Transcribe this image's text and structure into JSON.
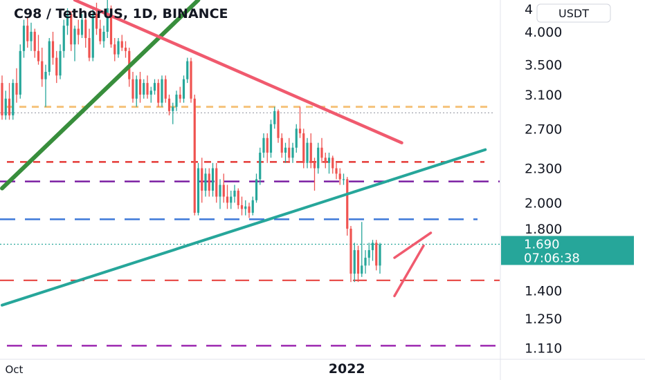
{
  "chart_data": {
    "type": "candlestick",
    "title": "C98 / TetherUS, 1D, BINANCE",
    "currency": "USDT",
    "y_scale": "log",
    "ylim": [
      1.06,
      4.55
    ],
    "y_ticks": [
      "4.000",
      "3.500",
      "3.100",
      "2.700",
      "2.300",
      "2.000",
      "1.800",
      "1.400",
      "1.250",
      "1.110"
    ],
    "y_tick_values": [
      4.0,
      3.5,
      3.1,
      2.7,
      2.3,
      2.0,
      1.8,
      1.4,
      1.25,
      1.11
    ],
    "top_partial_tick": "4",
    "x_labels": [
      {
        "text": "Oct",
        "bar": 2,
        "bold": false
      },
      {
        "text": "2022",
        "bar": 91,
        "bold": true
      }
    ],
    "colors": {
      "up": "#26a69a",
      "down": "#ef5350",
      "teal_line": "#26a69a",
      "green_line": "#388e3c",
      "red_line": "#f05a6e",
      "orange_dash": "#f5c27a",
      "red_dash": "#e53935",
      "purple_dash": "#7b1fa2",
      "blue_dash": "#3c78d8",
      "pink_purple_dash": "#9c27b0"
    },
    "current_price": {
      "value": 1.69,
      "price": "1.690",
      "countdown": "07:06:38"
    },
    "candles": [
      [
        3.25,
        3.35,
        2.8,
        2.85
      ],
      [
        2.85,
        3.15,
        2.8,
        3.05
      ],
      [
        3.05,
        3.25,
        2.8,
        2.85
      ],
      [
        2.85,
        3.3,
        2.8,
        3.25
      ],
      [
        3.25,
        3.45,
        3.0,
        3.1
      ],
      [
        3.1,
        3.8,
        3.05,
        3.7
      ],
      [
        3.7,
        4.2,
        3.6,
        4.1
      ],
      [
        4.1,
        4.25,
        3.75,
        3.85
      ],
      [
        3.85,
        4.15,
        3.7,
        4.0
      ],
      [
        4.0,
        4.05,
        3.6,
        3.7
      ],
      [
        3.7,
        3.95,
        3.5,
        3.55
      ],
      [
        3.55,
        3.75,
        3.2,
        3.3
      ],
      [
        3.3,
        3.5,
        2.95,
        3.4
      ],
      [
        3.4,
        3.9,
        3.35,
        3.85
      ],
      [
        3.85,
        4.0,
        3.5,
        3.6
      ],
      [
        3.6,
        3.7,
        3.25,
        3.35
      ],
      [
        3.35,
        3.8,
        3.3,
        3.7
      ],
      [
        3.7,
        4.2,
        3.6,
        4.1
      ],
      [
        4.1,
        4.4,
        3.95,
        4.3
      ],
      [
        4.3,
        4.35,
        3.7,
        3.8
      ],
      [
        3.8,
        4.1,
        3.55,
        4.05
      ],
      [
        4.05,
        4.2,
        3.8,
        3.95
      ],
      [
        3.95,
        4.3,
        3.9,
        4.2
      ],
      [
        4.2,
        4.35,
        3.75,
        3.9
      ],
      [
        3.9,
        4.05,
        3.55,
        3.6
      ],
      [
        3.6,
        4.4,
        3.55,
        4.3
      ],
      [
        4.3,
        4.5,
        3.95,
        4.05
      ],
      [
        4.05,
        4.2,
        3.8,
        3.85
      ],
      [
        3.85,
        4.1,
        3.75,
        4.0
      ],
      [
        4.0,
        4.55,
        3.9,
        4.4
      ],
      [
        4.4,
        4.45,
        3.75,
        3.8
      ],
      [
        3.8,
        3.9,
        3.55,
        3.65
      ],
      [
        3.65,
        3.9,
        3.6,
        3.85
      ],
      [
        3.85,
        3.95,
        3.7,
        3.75
      ],
      [
        3.75,
        3.85,
        3.6,
        3.7
      ],
      [
        3.7,
        3.75,
        3.2,
        3.3
      ],
      [
        3.3,
        3.4,
        3.0,
        3.05
      ],
      [
        3.05,
        3.35,
        2.95,
        3.3
      ],
      [
        3.3,
        3.4,
        3.0,
        3.1
      ],
      [
        3.1,
        3.3,
        3.05,
        3.25
      ],
      [
        3.25,
        3.35,
        3.05,
        3.1
      ],
      [
        3.1,
        3.2,
        3.0,
        3.15
      ],
      [
        3.15,
        3.3,
        3.1,
        3.25
      ],
      [
        3.25,
        3.3,
        2.95,
        3.0
      ],
      [
        3.0,
        3.35,
        2.95,
        3.3
      ],
      [
        3.3,
        3.35,
        3.0,
        3.05
      ],
      [
        3.05,
        3.1,
        2.85,
        2.9
      ],
      [
        2.9,
        3.0,
        2.75,
        2.95
      ],
      [
        2.95,
        3.15,
        2.9,
        3.1
      ],
      [
        3.1,
        3.2,
        3.0,
        3.05
      ],
      [
        3.05,
        3.35,
        3.0,
        3.3
      ],
      [
        3.3,
        3.6,
        3.25,
        3.55
      ],
      [
        3.55,
        3.6,
        3.0,
        3.05
      ],
      [
        3.05,
        3.1,
        1.9,
        1.92
      ],
      [
        1.92,
        2.35,
        1.9,
        2.3
      ],
      [
        2.3,
        2.4,
        2.0,
        2.1
      ],
      [
        2.1,
        2.3,
        2.05,
        2.25
      ],
      [
        2.25,
        2.3,
        2.05,
        2.1
      ],
      [
        2.1,
        2.35,
        2.05,
        2.3
      ],
      [
        2.3,
        2.35,
        2.0,
        2.05
      ],
      [
        2.05,
        2.2,
        1.95,
        2.15
      ],
      [
        2.15,
        2.25,
        2.0,
        2.05
      ],
      [
        2.05,
        2.15,
        1.95,
        2.0
      ],
      [
        2.0,
        2.1,
        1.95,
        2.05
      ],
      [
        2.05,
        2.15,
        2.0,
        2.1
      ],
      [
        2.1,
        2.12,
        1.95,
        1.98
      ],
      [
        1.98,
        2.05,
        1.9,
        1.95
      ],
      [
        1.95,
        2.02,
        1.9,
        1.97
      ],
      [
        1.97,
        2.0,
        1.88,
        1.92
      ],
      [
        1.92,
        2.05,
        1.9,
        2.02
      ],
      [
        2.02,
        2.25,
        2.0,
        2.2
      ],
      [
        2.2,
        2.5,
        2.15,
        2.45
      ],
      [
        2.45,
        2.65,
        2.4,
        2.6
      ],
      [
        2.6,
        2.65,
        2.35,
        2.45
      ],
      [
        2.45,
        2.8,
        2.4,
        2.75
      ],
      [
        2.75,
        2.95,
        2.7,
        2.9
      ],
      [
        2.9,
        2.92,
        2.55,
        2.6
      ],
      [
        2.6,
        2.65,
        2.4,
        2.45
      ],
      [
        2.45,
        2.55,
        2.35,
        2.5
      ],
      [
        2.5,
        2.6,
        2.35,
        2.4
      ],
      [
        2.4,
        2.55,
        2.35,
        2.5
      ],
      [
        2.5,
        2.75,
        2.45,
        2.7
      ],
      [
        2.7,
        2.95,
        2.6,
        2.65
      ],
      [
        2.65,
        2.7,
        2.3,
        2.35
      ],
      [
        2.35,
        2.6,
        2.3,
        2.55
      ],
      [
        2.55,
        2.65,
        2.3,
        2.35
      ],
      [
        2.35,
        2.4,
        2.1,
        2.3
      ],
      [
        2.3,
        2.55,
        2.25,
        2.5
      ],
      [
        2.5,
        2.6,
        2.35,
        2.4
      ],
      [
        2.4,
        2.45,
        2.3,
        2.35
      ],
      [
        2.35,
        2.45,
        2.25,
        2.4
      ],
      [
        2.4,
        2.42,
        2.25,
        2.3
      ],
      [
        2.3,
        2.35,
        2.2,
        2.25
      ],
      [
        2.25,
        2.3,
        2.15,
        2.2
      ],
      [
        2.2,
        2.25,
        2.15,
        2.2
      ],
      [
        2.2,
        2.22,
        1.75,
        1.8
      ],
      [
        1.8,
        1.82,
        1.45,
        1.5
      ],
      [
        1.5,
        1.7,
        1.45,
        1.65
      ],
      [
        1.65,
        1.68,
        1.45,
        1.5
      ],
      [
        1.5,
        1.85,
        1.48,
        1.55
      ],
      [
        1.55,
        1.65,
        1.5,
        1.6
      ],
      [
        1.6,
        1.7,
        1.55,
        1.65
      ],
      [
        1.65,
        1.72,
        1.58,
        1.7
      ],
      [
        1.7,
        1.72,
        1.52,
        1.55
      ],
      [
        1.55,
        1.7,
        1.5,
        1.69
      ]
    ],
    "lines": [
      {
        "name": "green-uptrend",
        "points": [
          [
            0,
            2.12
          ],
          [
            54,
            4.55
          ]
        ]
      },
      {
        "name": "red-downtrend",
        "points": [
          [
            20,
            4.55
          ],
          [
            110,
            2.55
          ]
        ]
      },
      {
        "name": "teal-support",
        "points": [
          [
            0,
            1.32
          ],
          [
            133,
            2.48
          ]
        ]
      }
    ],
    "horizontal_levels": [
      {
        "name": "orange-level",
        "value": 2.95
      },
      {
        "name": "gray-dotted-level",
        "value": 2.88
      },
      {
        "name": "red-dashed-level",
        "value": 2.36
      },
      {
        "name": "purple-dashed-level",
        "value": 2.18
      },
      {
        "name": "blue-dashed-level",
        "value": 1.87
      },
      {
        "name": "current-price-dotted",
        "value": 1.69
      },
      {
        "name": "red-dashed-low",
        "value": 1.46
      },
      {
        "name": "purple-dashed-bottom",
        "value": 1.12
      }
    ],
    "wedge": {
      "upper": [
        [
          108,
          1.6
        ],
        [
          118,
          1.77
        ]
      ],
      "lower": [
        [
          108,
          1.37
        ],
        [
          116,
          1.68
        ]
      ]
    }
  }
}
